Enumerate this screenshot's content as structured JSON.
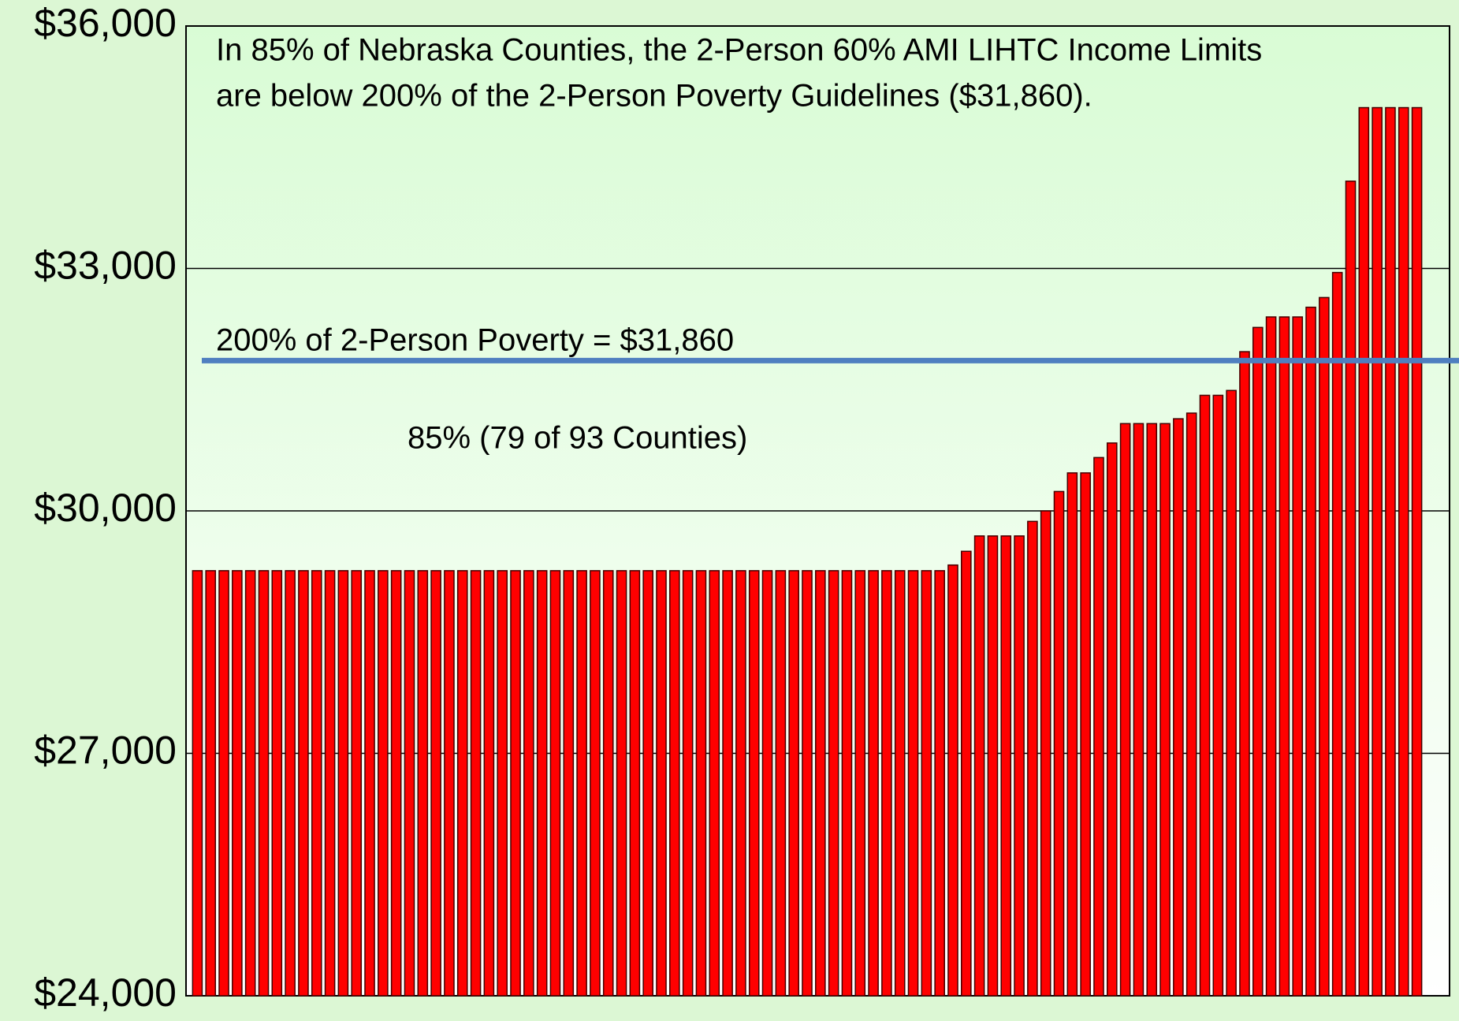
{
  "chart_data": {
    "type": "bar",
    "title_lines": [
      "In 85% of Nebraska Counties, the 2-Person 60% AMI LIHTC Income Limits",
      "are below 200% of the 2-Person Poverty Guidelines ($31,860)."
    ],
    "categories": [
      null,
      null,
      null,
      null,
      null,
      null,
      null,
      null,
      null,
      null,
      null,
      null,
      null,
      null,
      null,
      null,
      null,
      null,
      null,
      null,
      null,
      null,
      null,
      null,
      null,
      null,
      null,
      null,
      null,
      null,
      null,
      null,
      null,
      null,
      null,
      null,
      null,
      null,
      null,
      null,
      null,
      null,
      null,
      null,
      null,
      null,
      null,
      null,
      null,
      null,
      null,
      null,
      null,
      null,
      null,
      null,
      null,
      null,
      null,
      null,
      null,
      null,
      null,
      null,
      null,
      null,
      null,
      null,
      null,
      null,
      null,
      null,
      null,
      null,
      null,
      null,
      null,
      null,
      null,
      null,
      null,
      null,
      null,
      null,
      null,
      null,
      null,
      null,
      null,
      null,
      null,
      null,
      null
    ],
    "values": [
      29260,
      29260,
      29260,
      29260,
      29260,
      29260,
      29260,
      29260,
      29260,
      29260,
      29260,
      29260,
      29260,
      29260,
      29260,
      29260,
      29260,
      29260,
      29260,
      29260,
      29260,
      29260,
      29260,
      29260,
      29260,
      29260,
      29260,
      29260,
      29260,
      29260,
      29260,
      29260,
      29260,
      29260,
      29260,
      29260,
      29260,
      29260,
      29260,
      29260,
      29260,
      29260,
      29260,
      29260,
      29260,
      29260,
      29260,
      29260,
      29260,
      29260,
      29260,
      29260,
      29260,
      29260,
      29260,
      29260,
      29260,
      29330,
      29500,
      29690,
      29690,
      29690,
      29690,
      29870,
      30000,
      30240,
      30470,
      30470,
      30660,
      30840,
      31080,
      31080,
      31080,
      31080,
      31140,
      31210,
      31430,
      31430,
      31490,
      31970,
      32270,
      32400,
      32400,
      32400,
      32520,
      32640,
      32950,
      34080,
      34990,
      34990,
      34990,
      34990,
      34990
    ],
    "color": "#ff0000",
    "ylim": [
      24000,
      36000
    ],
    "yticks": [
      {
        "value": 24000,
        "label": "$24,000"
      },
      {
        "value": 27000,
        "label": "$27,000"
      },
      {
        "value": 30000,
        "label": "$30,000"
      },
      {
        "value": 33000,
        "label": "$33,000"
      },
      {
        "value": 36000,
        "label": "$36,000"
      }
    ],
    "grid": true,
    "reference_line": {
      "value": 31860,
      "label": "200% of 2-Person Poverty = $31,860",
      "color": "#4f7fc0"
    },
    "annotation": "85% (79 of 93 Counties)"
  }
}
